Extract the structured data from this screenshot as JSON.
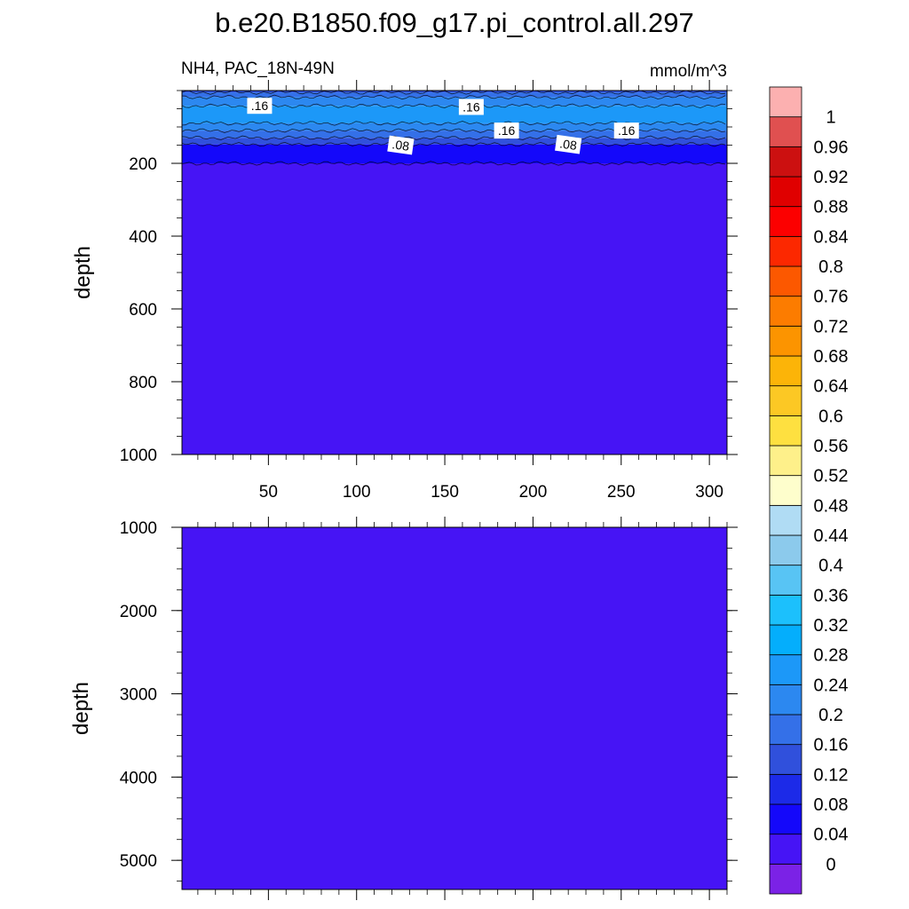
{
  "chart_data": {
    "type": "heatmap",
    "title": "b.e20.B1850.f09_g17.pi_control.all.297",
    "subtitle_left": "NH4, PAC_18N-49N",
    "units": "mmol/m^3",
    "colorbar": {
      "orientation": "vertical",
      "levels": [
        "0",
        "0.04",
        "0.08",
        "0.12",
        "0.16",
        "0.2",
        "0.24",
        "0.28",
        "0.32",
        "0.36",
        "0.4",
        "0.44",
        "0.48",
        "0.52",
        "0.56",
        "0.6",
        "0.64",
        "0.68",
        "0.72",
        "0.76",
        "0.8",
        "0.84",
        "0.88",
        "0.92",
        "0.96",
        "1"
      ],
      "colors": [
        "#7b22e6",
        "#4614f5",
        "#1408fa",
        "#1c2ae8",
        "#3050dc",
        "#3470e8",
        "#2c88f0",
        "#1c98f8",
        "#04aefc",
        "#1cc0fc",
        "#58c4f4",
        "#8ccaec",
        "#b0dcf4",
        "#fefecc",
        "#fef08a",
        "#fee040",
        "#fcc824",
        "#fcb408",
        "#fc9400",
        "#fc7c00",
        "#fc5800",
        "#fc2800",
        "#fc0000",
        "#e00000",
        "#cc1010",
        "#e05050",
        "#fcb0b0"
      ]
    },
    "panels": [
      {
        "ylabel": "depth",
        "ylim": [
          1000,
          0
        ],
        "yticks": [
          "200",
          "400",
          "600",
          "800",
          "1000"
        ],
        "xlim": [
          1,
          310
        ],
        "xticks": [
          "50",
          "100",
          "150",
          "200",
          "250",
          "300"
        ],
        "bands": [
          {
            "from": 0,
            "to": 5,
            "level": 0.12
          },
          {
            "from": 5,
            "to": 18,
            "level": 0.16
          },
          {
            "from": 18,
            "to": 42,
            "level": 0.2
          },
          {
            "from": 42,
            "to": 90,
            "level": 0.24
          },
          {
            "from": 90,
            "to": 110,
            "level": 0.2
          },
          {
            "from": 110,
            "to": 130,
            "level": 0.16
          },
          {
            "from": 130,
            "to": 148,
            "level": 0.12
          },
          {
            "from": 148,
            "to": 200,
            "level": 0.04
          },
          {
            "from": 200,
            "to": 1000,
            "level": 0
          }
        ],
        "contour_labels": [
          {
            "text": ".16",
            "x": 45,
            "depth": 42
          },
          {
            "text": ".16",
            "x": 165,
            "depth": 45
          },
          {
            "text": ".16",
            "x": 185,
            "depth": 110
          },
          {
            "text": ".16",
            "x": 253,
            "depth": 110
          },
          {
            "text": ".08",
            "x": 125,
            "depth": 150
          },
          {
            "text": ".08",
            "x": 220,
            "depth": 148
          }
        ]
      },
      {
        "ylabel": "depth",
        "ylim": [
          5350,
          1000
        ],
        "yticks": [
          "1000",
          "2000",
          "3000",
          "4000",
          "5000"
        ],
        "xlim": [
          1,
          310
        ],
        "bands": [
          {
            "from": 1000,
            "to": 5350,
            "level": 0
          }
        ]
      }
    ]
  }
}
